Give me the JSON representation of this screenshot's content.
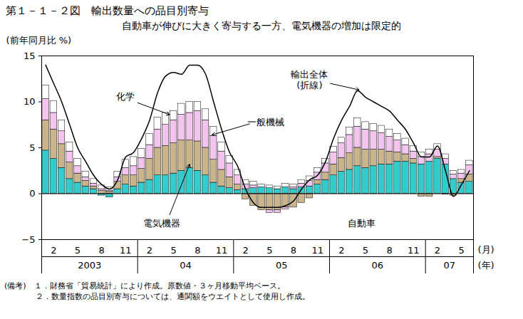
{
  "chart_data": {
    "type": "bar",
    "stacked": true,
    "title": "第１－１－２図　輸出数量への品目別寄与",
    "subtitle": "自動車が伸びに大きく寄与する一方、電気機器の増加は限定的",
    "y_label": "(前年同月比 %)",
    "x_unit_labels": [
      "(月)",
      "(年)"
    ],
    "notes": [
      "(備考)　１．財務省「貿易統計」により作成。原数値・３ヶ月移動平均ベース。",
      "　　　　２．数量指数の品目別寄与については、通関額をウエイトとして使用し作成。"
    ],
    "categories": [
      null,
      "2",
      null,
      null,
      "5",
      null,
      null,
      "8",
      null,
      null,
      "11",
      null,
      null,
      "2",
      null,
      null,
      "5",
      null,
      null,
      "8",
      null,
      null,
      "11",
      null,
      null,
      "2",
      null,
      null,
      "5",
      null,
      null,
      "8",
      null,
      null,
      "11",
      null,
      null,
      "2",
      null,
      null,
      "5",
      null,
      null,
      "8",
      null,
      null,
      "11",
      null,
      null,
      "2",
      null,
      null,
      "5",
      null
    ],
    "x_groups": [
      {
        "label": "2003",
        "count": 12
      },
      {
        "label": "04",
        "count": 12
      },
      {
        "label": "05",
        "count": 12
      },
      {
        "label": "06",
        "count": 12
      },
      {
        "label": "07",
        "count": 6
      }
    ],
    "ylim": [
      -5,
      15
    ],
    "yticks": [
      -5,
      0,
      5,
      10,
      15
    ],
    "series": [
      {
        "name": "自動車",
        "color": "#33cccc",
        "values": [
          4.7,
          3.8,
          2.8,
          1.6,
          1.2,
          0.8,
          0.5,
          -0.2,
          -0.4,
          0.5,
          1.0,
          0.8,
          1.2,
          1.5,
          2.0,
          2.0,
          2.2,
          2.5,
          2.8,
          2.5,
          2.0,
          1.2,
          0.8,
          0.6,
          0.4,
          0.5,
          0.6,
          0.7,
          0.6,
          0.5,
          0.7,
          0.5,
          0.7,
          0.8,
          1.0,
          1.5,
          2.0,
          2.4,
          2.6,
          3.0,
          2.8,
          3.0,
          3.2,
          3.2,
          3.5,
          3.5,
          3.3,
          3.2,
          3.5,
          3.8,
          3.2,
          1.6,
          1.2,
          1.3
        ]
      },
      {
        "name": "電気機器",
        "color": "#c9b48c",
        "values": [
          3.3,
          3.2,
          2.6,
          1.8,
          1.0,
          0.6,
          0.3,
          0.3,
          0.2,
          0.8,
          1.0,
          1.2,
          1.5,
          2.3,
          3.0,
          3.2,
          3.3,
          3.3,
          3.0,
          3.2,
          3.0,
          2.5,
          1.8,
          1.2,
          0.6,
          -0.6,
          -1.3,
          -1.8,
          -1.8,
          -1.8,
          -1.5,
          -1.5,
          -1.0,
          -0.5,
          0.5,
          0.8,
          1.2,
          1.5,
          1.8,
          2.0,
          2.0,
          1.8,
          1.6,
          1.4,
          1.0,
          0.8,
          0.5,
          -0.3,
          -0.3,
          0.2,
          -0.1,
          -0.2,
          0.4,
          0.8
        ]
      },
      {
        "name": "一般機械",
        "color": "#f2c4ee",
        "values": [
          2.3,
          1.8,
          1.4,
          1.2,
          0.8,
          0.4,
          0.3,
          0.2,
          0.1,
          0.5,
          0.8,
          1.0,
          1.2,
          1.5,
          2.0,
          2.3,
          2.5,
          2.8,
          3.0,
          3.3,
          3.0,
          2.6,
          2.0,
          1.5,
          1.0,
          0.5,
          0.3,
          0.0,
          -0.3,
          -0.3,
          -0.2,
          0.2,
          0.4,
          0.6,
          0.8,
          1.0,
          1.3,
          1.6,
          2.0,
          2.3,
          2.2,
          2.0,
          1.8,
          1.6,
          1.3,
          1.0,
          0.8,
          0.8,
          0.8,
          0.8,
          0.6,
          0.5,
          0.6,
          1.0
        ]
      },
      {
        "name": "化学",
        "color": "#ffffff",
        "values": [
          1.5,
          1.3,
          1.2,
          1.0,
          0.8,
          0.6,
          0.5,
          0.4,
          0.4,
          0.6,
          0.9,
          1.0,
          1.0,
          1.2,
          1.3,
          1.3,
          1.0,
          1.2,
          1.2,
          1.0,
          1.2,
          1.0,
          1.0,
          0.8,
          0.6,
          0.5,
          0.4,
          0.3,
          0.3,
          0.3,
          0.4,
          0.3,
          0.4,
          0.5,
          0.5,
          0.5,
          0.6,
          0.6,
          0.8,
          0.9,
          0.8,
          0.8,
          0.8,
          0.8,
          0.7,
          0.7,
          0.6,
          0.5,
          0.5,
          0.6,
          0.5,
          0.4,
          0.4,
          0.5
        ]
      },
      {
        "name": "輸出全体\n(折線)",
        "type": "line",
        "color": "#000000",
        "values": [
          14,
          12,
          10,
          7.5,
          5,
          3.5,
          2,
          1,
          0.5,
          1.5,
          4,
          4.5,
          6,
          8,
          11,
          12.8,
          13.2,
          13,
          14,
          14,
          13,
          10,
          7,
          4.5,
          3,
          0.5,
          -1,
          -1.5,
          -1.5,
          -1.5,
          -1.3,
          -0.8,
          0.5,
          1.5,
          2,
          3.5,
          6,
          8,
          9.5,
          11.2,
          10.5,
          10,
          9.5,
          9,
          8,
          7,
          5.5,
          4,
          4,
          5.2,
          2.5,
          -0.3,
          1,
          2.5
        ]
      }
    ]
  }
}
